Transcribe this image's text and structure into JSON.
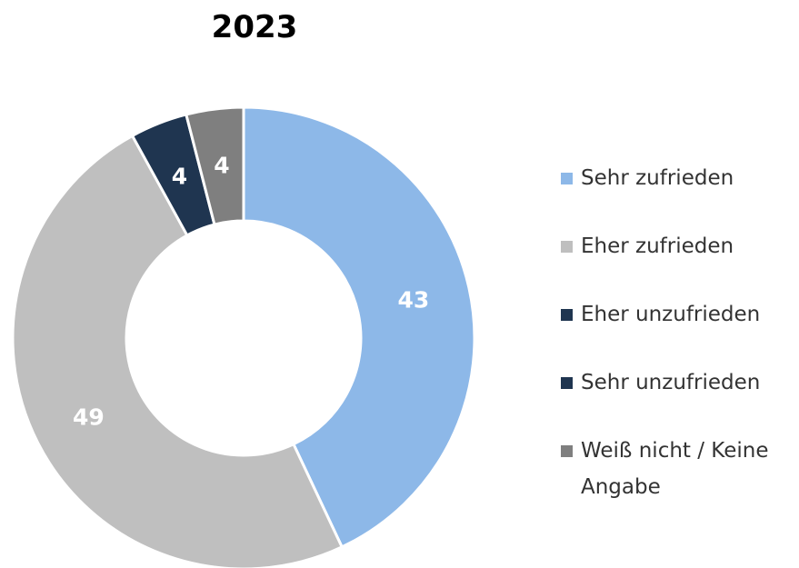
{
  "chart_data": {
    "type": "donut",
    "title": "2023",
    "categories": [
      "Sehr zufrieden",
      "Eher zufrieden",
      "Eher unzufrieden",
      "Sehr unzufrieden",
      "Weiß nicht / Keine Angabe"
    ],
    "values": [
      43,
      49,
      4,
      0,
      4
    ],
    "colors": [
      "#8db8e8",
      "#bfbfbf",
      "#1f3550",
      "#1f3550",
      "#7f7f7f"
    ],
    "legend": "right"
  }
}
